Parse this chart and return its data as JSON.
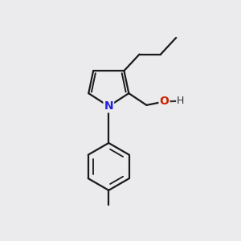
{
  "background_color": "#ebebed",
  "bond_color": "#1a1a1a",
  "atom_N_color": "#2020dd",
  "atom_O_color": "#cc2200",
  "atom_H_color": "#333333",
  "line_width": 1.6,
  "figsize": [
    3.0,
    3.0
  ],
  "dpi": 100,
  "xlim": [
    0,
    10
  ],
  "ylim": [
    0,
    10
  ]
}
